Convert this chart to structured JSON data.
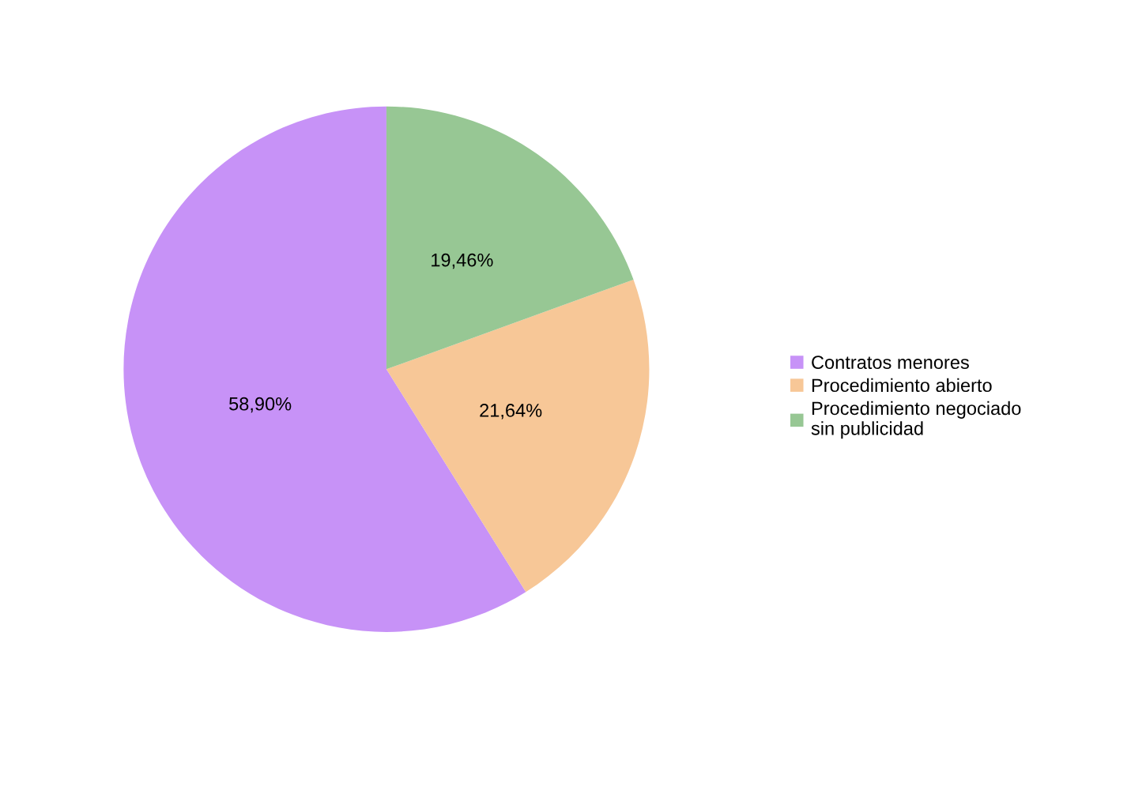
{
  "chart_data": {
    "type": "pie",
    "categories": [
      "Contratos menores",
      "Procedimiento abierto",
      "Procedimiento negociado sin publicidad"
    ],
    "values": [
      58.9,
      21.64,
      19.46
    ],
    "colors": [
      "#c792f7",
      "#f7c797",
      "#97c794"
    ],
    "value_labels": [
      "58,90%",
      "21,64%",
      "19,46%"
    ],
    "legend": "right"
  }
}
